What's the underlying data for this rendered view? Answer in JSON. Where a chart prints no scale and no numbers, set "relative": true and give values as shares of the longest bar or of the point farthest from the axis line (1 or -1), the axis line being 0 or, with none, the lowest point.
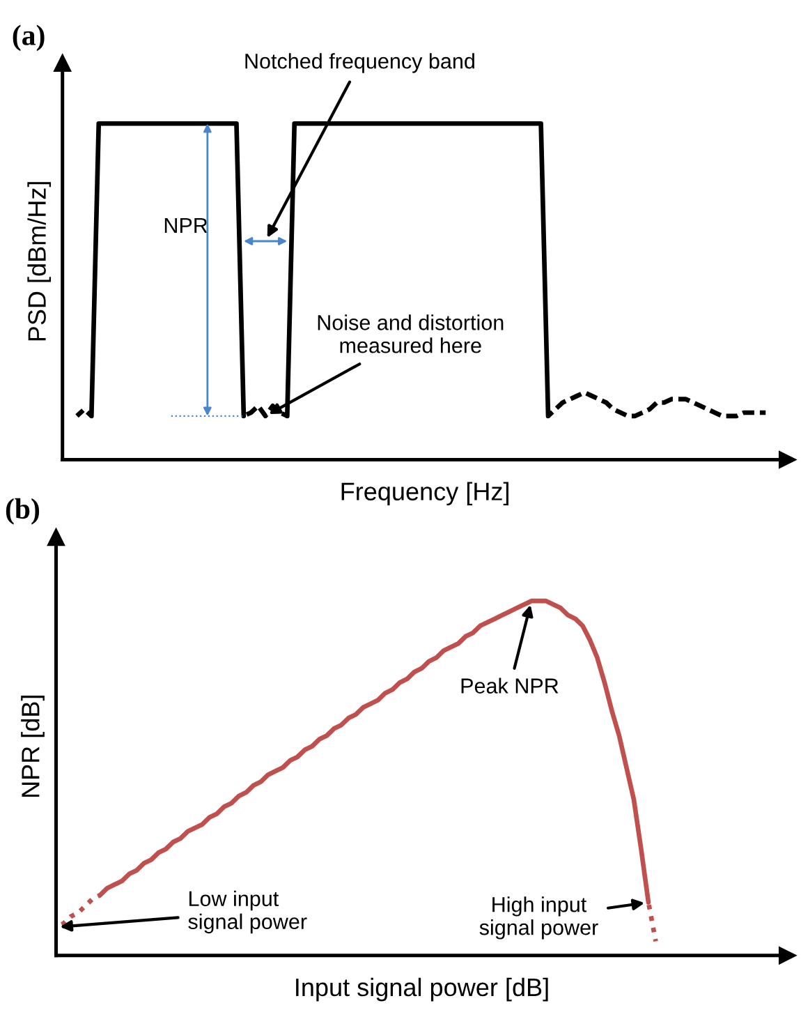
{
  "chart_data": [
    {
      "type": "line",
      "title": "(a)",
      "xlabel": "Frequency [Hz]",
      "ylabel": "PSD [dBm/Hz]",
      "relative": true,
      "categories": [
        null,
        null,
        null,
        null,
        null,
        null,
        null,
        null,
        null,
        null,
        null,
        null,
        null,
        null,
        null,
        null,
        null,
        null,
        null,
        null,
        null,
        null,
        null,
        null,
        null,
        null,
        null,
        null,
        null,
        null,
        null,
        null,
        null,
        null,
        null,
        null,
        null,
        null,
        null,
        null,
        null,
        null,
        null,
        null,
        null,
        null,
        null,
        null,
        null,
        null,
        null,
        null,
        null,
        null,
        null,
        null,
        null,
        null,
        null,
        null,
        null,
        null,
        null,
        null,
        null,
        null,
        null,
        null,
        null,
        null,
        null,
        null,
        null,
        null,
        null,
        null,
        null,
        null,
        null,
        null,
        null,
        null,
        null,
        null,
        null,
        null,
        null,
        null,
        null,
        null,
        null,
        null,
        null,
        null,
        null,
        null,
        null,
        null,
        null,
        null
      ],
      "series": [
        {
          "color": "#000000",
          "line_style": "solid",
          "values": [
            null,
            null,
            null,
            null,
            0.13,
            1,
            1,
            1,
            1,
            1,
            1,
            1,
            1,
            1,
            1,
            1,
            1,
            1,
            1,
            1,
            1,
            1,
            1,
            1,
            1,
            0.13,
            null,
            null,
            null,
            null,
            null,
            null,
            null,
            null,
            null,
            null,
            null,
            null,
            null,
            null,
            null,
            null,
            null,
            null,
            null,
            null,
            null,
            null,
            null,
            null,
            null,
            null,
            null,
            null,
            null,
            null,
            null,
            null,
            null,
            null,
            null,
            null,
            null,
            null,
            null,
            null,
            null,
            null,
            null,
            null,
            null,
            null,
            null,
            null,
            null,
            null,
            null,
            null,
            null,
            null,
            null,
            null,
            null,
            null,
            null,
            null,
            null,
            null,
            null,
            null,
            null,
            null,
            null,
            null,
            null,
            null,
            null,
            null,
            null,
            null
          ]
        },
        {
          "color": "#000000",
          "line_style": "solid",
          "values": [
            null,
            null,
            null,
            null,
            null,
            null,
            null,
            null,
            null,
            null,
            null,
            null,
            null,
            null,
            null,
            null,
            null,
            null,
            null,
            null,
            null,
            null,
            null,
            null,
            null,
            null,
            null,
            null,
            null,
            null,
            null,
            0.13,
            1,
            1,
            1,
            1,
            1,
            1,
            1,
            1,
            1,
            1,
            1,
            1,
            1,
            1,
            1,
            1,
            1,
            1,
            1,
            1,
            1,
            1,
            1,
            1,
            1,
            1,
            1,
            1,
            1,
            1,
            1,
            1,
            1,
            1,
            1,
            0.13,
            null,
            null,
            null,
            null,
            null,
            null,
            null,
            null,
            null,
            null,
            null,
            null,
            null,
            null,
            null,
            null,
            null,
            null,
            null,
            null,
            null,
            null,
            null,
            null,
            null,
            null,
            null,
            null,
            null,
            null,
            null,
            null
          ]
        },
        {
          "color": "#000000",
          "line_style": "dashed",
          "values": [
            null,
            null,
            0.13,
            0.15,
            0.13,
            null,
            null,
            null,
            null,
            null,
            null,
            null,
            null,
            null,
            null,
            null,
            null,
            null,
            null,
            null,
            null,
            null,
            null,
            null,
            null,
            null,
            null,
            null,
            null,
            null,
            null,
            null,
            null,
            null,
            null,
            null,
            null,
            null,
            null,
            null,
            null,
            null,
            null,
            null,
            null,
            null,
            null,
            null,
            null,
            null,
            null,
            null,
            null,
            null,
            null,
            null,
            null,
            null,
            null,
            null,
            null,
            null,
            null,
            null,
            null,
            null,
            null,
            null,
            null,
            null,
            null,
            null,
            null,
            null,
            null,
            null,
            null,
            null,
            null,
            null,
            null,
            null,
            null,
            null,
            null,
            null,
            null,
            null,
            null,
            null,
            null,
            null,
            null,
            null,
            null,
            null,
            null,
            null,
            null,
            null
          ]
        },
        {
          "color": "#000000",
          "line_style": "dashed",
          "values": [
            null,
            null,
            null,
            null,
            null,
            null,
            null,
            null,
            null,
            null,
            null,
            null,
            null,
            null,
            null,
            null,
            null,
            null,
            null,
            null,
            null,
            null,
            null,
            null,
            null,
            0.13,
            0.14,
            0.16,
            0.13,
            0.16,
            0.14,
            0.13,
            null,
            null,
            null,
            null,
            null,
            null,
            null,
            null,
            null,
            null,
            null,
            null,
            null,
            null,
            null,
            null,
            null,
            null,
            null,
            null,
            null,
            null,
            null,
            null,
            null,
            null,
            null,
            null,
            null,
            null,
            null,
            null,
            null,
            null,
            null,
            null,
            null,
            null,
            null,
            null,
            null,
            null,
            null,
            null,
            null,
            null,
            null,
            null,
            null,
            null,
            null,
            null,
            null,
            null,
            null,
            null,
            null,
            null,
            null,
            null,
            null,
            null,
            null,
            null,
            null,
            null,
            null,
            null
          ]
        },
        {
          "color": "#000000",
          "line_style": "dashed",
          "values": [
            null,
            null,
            null,
            null,
            null,
            null,
            null,
            null,
            null,
            null,
            null,
            null,
            null,
            null,
            null,
            null,
            null,
            null,
            null,
            null,
            null,
            null,
            null,
            null,
            null,
            null,
            null,
            null,
            null,
            null,
            null,
            null,
            null,
            null,
            null,
            null,
            null,
            null,
            null,
            null,
            null,
            null,
            null,
            null,
            null,
            null,
            null,
            null,
            null,
            null,
            null,
            null,
            null,
            null,
            null,
            null,
            null,
            null,
            null,
            null,
            null,
            null,
            null,
            null,
            null,
            null,
            null,
            0.13,
            0.15,
            0.17,
            0.18,
            0.19,
            0.2,
            0.19,
            0.18,
            0.17,
            0.15,
            0.14,
            0.13,
            0.13,
            0.14,
            0.15,
            0.17,
            0.17,
            0.18,
            0.18,
            0.18,
            0.17,
            0.16,
            0.15,
            0.14,
            0.13,
            0.13,
            0.13,
            0.14,
            0.14,
            0.14,
            0.14,
            null,
            null
          ]
        }
      ],
      "annotations": [
        "Notched frequency band",
        "NPR",
        "Noise and distortion\nmeasured here"
      ]
    },
    {
      "type": "line",
      "title": "(b)",
      "xlabel": "Input signal power [dB]",
      "ylabel": "NPR [dB]",
      "relative": true,
      "categories": [
        null,
        null,
        null,
        null,
        null,
        null,
        null,
        null,
        null,
        null,
        null,
        null,
        null,
        null,
        null,
        null,
        null,
        null,
        null,
        null,
        null,
        null,
        null,
        null,
        null,
        null,
        null,
        null,
        null,
        null,
        null,
        null,
        null,
        null,
        null,
        null,
        null,
        null,
        null,
        null,
        null,
        null,
        null,
        null,
        null,
        null,
        null,
        null,
        null,
        null,
        null,
        null,
        null,
        null,
        null,
        null,
        null,
        null,
        null,
        null,
        null,
        null,
        null,
        null,
        null,
        null,
        null,
        null,
        null,
        null,
        null,
        null,
        null,
        null,
        null,
        null,
        null,
        null,
        null,
        null,
        null,
        null,
        null,
        null,
        null,
        null,
        null,
        null,
        null,
        null,
        null,
        null,
        null,
        null,
        null,
        null,
        null,
        null,
        null,
        null
      ],
      "series": [
        {
          "color": "#c0504d",
          "line_style": "solid",
          "values": [
            null,
            null,
            null,
            null,
            null,
            null,
            0.17,
            0.19,
            0.2,
            0.21,
            0.23,
            0.24,
            0.26,
            0.27,
            0.29,
            0.3,
            0.32,
            0.33,
            0.35,
            0.36,
            0.37,
            0.39,
            0.4,
            0.42,
            0.43,
            0.45,
            0.46,
            0.48,
            0.49,
            0.51,
            0.52,
            0.53,
            0.55,
            0.56,
            0.58,
            0.59,
            0.61,
            0.62,
            0.64,
            0.65,
            0.67,
            0.68,
            0.7,
            0.71,
            0.72,
            0.74,
            0.75,
            0.77,
            0.78,
            0.8,
            0.81,
            0.83,
            0.84,
            0.86,
            0.87,
            0.88,
            0.9,
            0.91,
            0.93,
            0.94,
            0.95,
            0.96,
            0.97,
            0.98,
            0.99,
            1,
            1,
            1,
            0.99,
            0.98,
            0.96,
            0.95,
            0.93,
            0.89,
            0.84,
            0.77,
            0.69,
            0.62,
            0.53,
            0.44,
            0.3,
            0.15,
            null,
            null,
            null,
            null,
            null,
            null,
            null,
            null,
            null,
            null,
            null,
            null,
            null,
            null,
            null,
            null,
            null,
            null
          ]
        },
        {
          "color": "#c0504d",
          "line_style": "dotted",
          "values": [
            0.08,
            0.09,
            0.11,
            0.12,
            0.14,
            0.16,
            0.17,
            null,
            null,
            null,
            null,
            null,
            null,
            null,
            null,
            null,
            null,
            null,
            null,
            null,
            null,
            null,
            null,
            null,
            null,
            null,
            null,
            null,
            null,
            null,
            null,
            null,
            null,
            null,
            null,
            null,
            null,
            null,
            null,
            null,
            null,
            null,
            null,
            null,
            null,
            null,
            null,
            null,
            null,
            null,
            null,
            null,
            null,
            null,
            null,
            null,
            null,
            null,
            null,
            null,
            null,
            null,
            null,
            null,
            null,
            null,
            null,
            null,
            null,
            null,
            null,
            null,
            null,
            null,
            null,
            null,
            null,
            null,
            null,
            null,
            null,
            null,
            null,
            null,
            null,
            null,
            null,
            null,
            null,
            null,
            null,
            null,
            null,
            null,
            null,
            null,
            null,
            null,
            null,
            null
          ]
        },
        {
          "color": "#c0504d",
          "line_style": "dotted",
          "values": [
            null,
            null,
            null,
            null,
            null,
            null,
            null,
            null,
            null,
            null,
            null,
            null,
            null,
            null,
            null,
            null,
            null,
            null,
            null,
            null,
            null,
            null,
            null,
            null,
            null,
            null,
            null,
            null,
            null,
            null,
            null,
            null,
            null,
            null,
            null,
            null,
            null,
            null,
            null,
            null,
            null,
            null,
            null,
            null,
            null,
            null,
            null,
            null,
            null,
            null,
            null,
            null,
            null,
            null,
            null,
            null,
            null,
            null,
            null,
            null,
            null,
            null,
            null,
            null,
            null,
            null,
            null,
            null,
            null,
            null,
            null,
            null,
            null,
            null,
            null,
            null,
            null,
            null,
            null,
            null,
            null,
            0.15,
            0.04,
            null,
            null,
            null,
            null,
            null,
            null,
            null,
            null,
            null,
            null,
            null,
            null,
            null,
            null,
            null,
            null,
            null
          ]
        }
      ],
      "annotations": [
        "Peak NPR",
        "Low input\nsignal power",
        "High input\nsignal power"
      ]
    }
  ]
}
